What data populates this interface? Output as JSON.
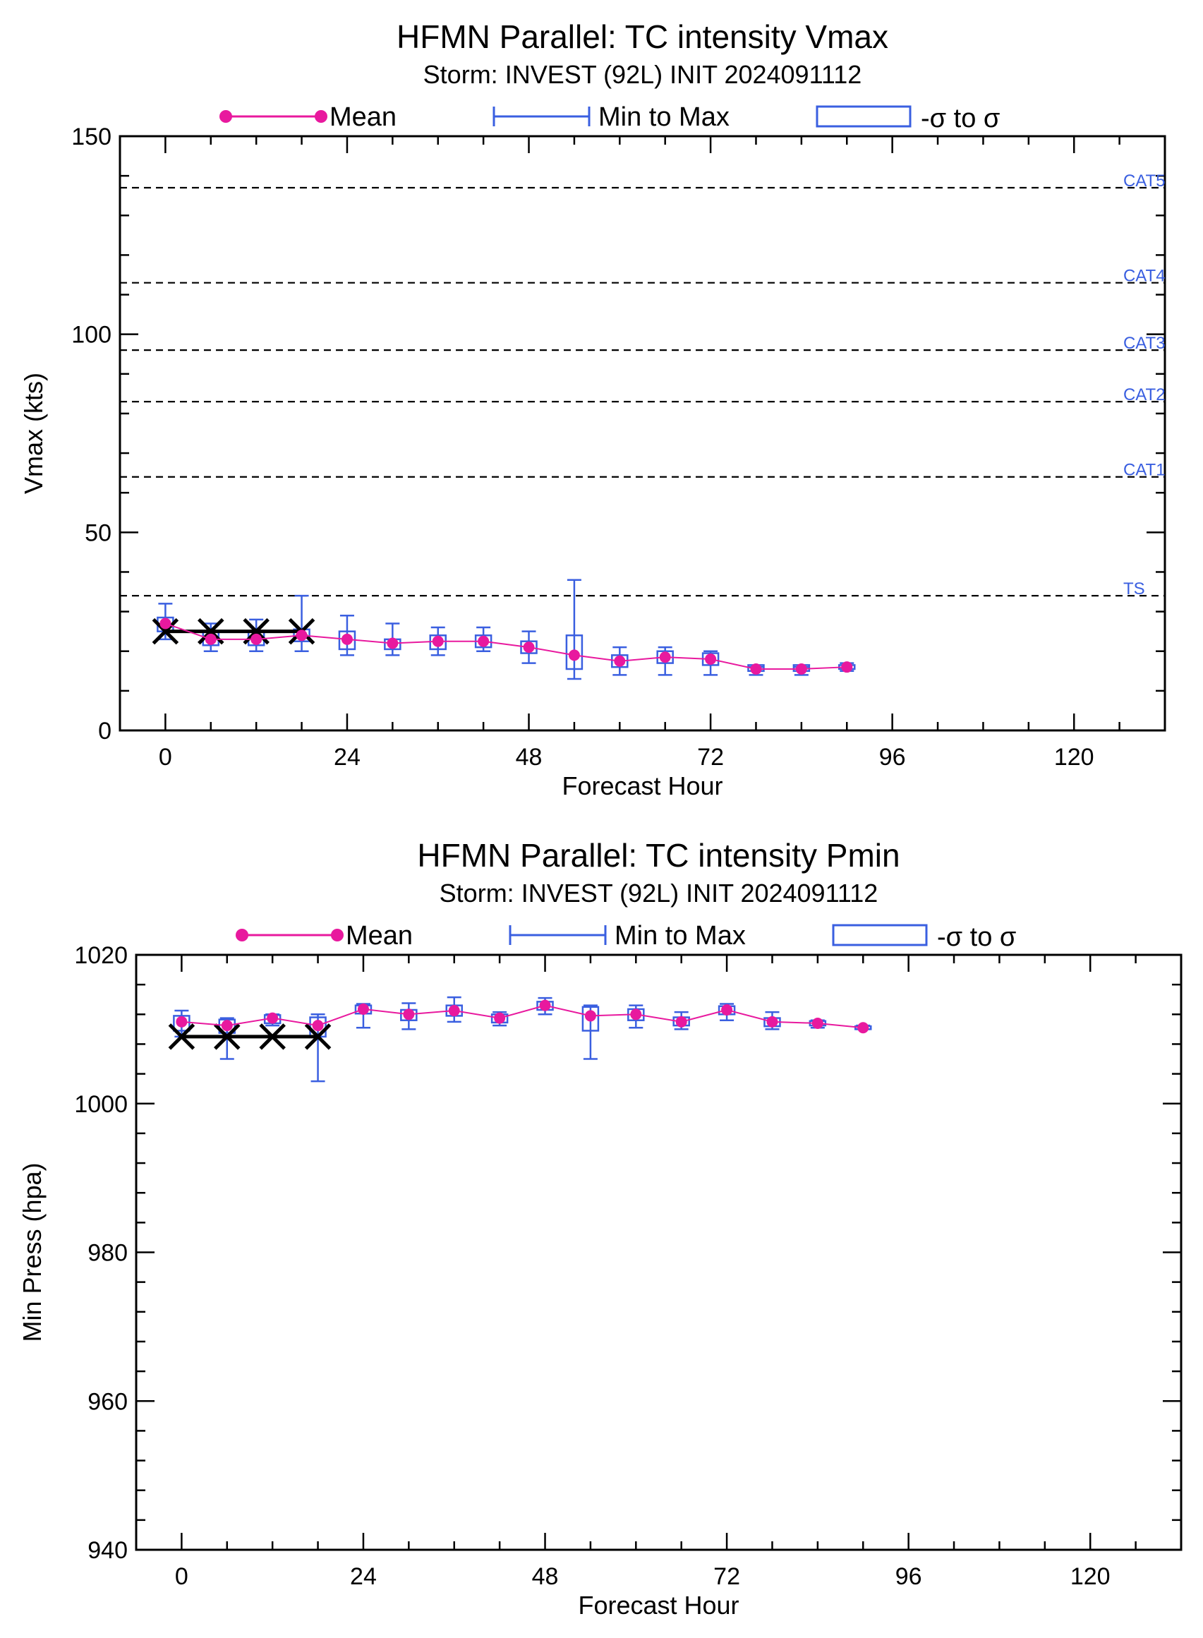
{
  "legend": {
    "mean": "Mean",
    "minmax": "Min to Max",
    "sigma": "-σ to σ"
  },
  "colors": {
    "mean": "#e8199e",
    "spread": "#3a5fe0",
    "obs": "#000000",
    "threshold": "#000000"
  },
  "chart_data": [
    {
      "type": "line",
      "title": "HFMN Parallel: TC intensity Vmax",
      "subtitle": "Storm: INVEST (92L) INIT 2024091112",
      "xlabel": "Forecast Hour",
      "ylabel": "Vmax (kts)",
      "xlim": [
        -6,
        132
      ],
      "ylim": [
        0,
        150
      ],
      "xticks": [
        0,
        24,
        48,
        72,
        96,
        120
      ],
      "yticks": [
        0,
        50,
        100,
        150
      ],
      "grid": false,
      "legend_position": "top",
      "thresholds": [
        {
          "label": "CAT5",
          "value": 137
        },
        {
          "label": "CAT4",
          "value": 113
        },
        {
          "label": "CAT3",
          "value": 96
        },
        {
          "label": "CAT2",
          "value": 83
        },
        {
          "label": "CAT1",
          "value": 64
        },
        {
          "label": "TS",
          "value": 34
        }
      ],
      "observed": {
        "x": [
          0,
          6,
          12,
          18
        ],
        "y": [
          25,
          25,
          25,
          25
        ]
      },
      "series": [
        {
          "name": "Mean",
          "x": [
            0,
            6,
            12,
            18,
            24,
            30,
            36,
            42,
            48,
            54,
            60,
            66,
            72,
            78,
            84,
            90
          ],
          "mean": [
            27,
            23,
            23,
            24,
            23,
            22,
            22.5,
            22.5,
            21,
            19,
            17.5,
            18.5,
            18,
            15.5,
            15.5,
            16
          ],
          "min": [
            23,
            20,
            20,
            20,
            19,
            19,
            19,
            20,
            17,
            13,
            14,
            14,
            14,
            14,
            14,
            15
          ],
          "max": [
            32,
            27,
            28,
            34,
            29,
            27,
            26,
            26,
            25,
            38,
            21,
            21,
            20,
            16,
            16,
            17
          ],
          "sigma_low": [
            25,
            21.5,
            21.5,
            22.5,
            20.5,
            20.5,
            20.5,
            21,
            19.5,
            15.5,
            16,
            17,
            16.5,
            15,
            15,
            15.5
          ],
          "sigma_high": [
            28.5,
            25,
            25,
            25.5,
            25,
            23,
            24,
            24,
            22.5,
            24,
            19,
            20,
            19.5,
            16.5,
            16.5,
            16.5
          ]
        }
      ]
    },
    {
      "type": "line",
      "title": "HFMN Parallel: TC intensity Pmin",
      "subtitle": "Storm: INVEST (92L) INIT 2024091112",
      "xlabel": "Forecast Hour",
      "ylabel": "Min Press (hpa)",
      "xlim": [
        -6,
        132
      ],
      "ylim": [
        940,
        1020
      ],
      "xticks": [
        0,
        24,
        48,
        72,
        96,
        120
      ],
      "yticks": [
        940,
        960,
        980,
        1000,
        1020
      ],
      "grid": false,
      "legend_position": "top",
      "observed": {
        "x": [
          0,
          6,
          12,
          18
        ],
        "y": [
          1009,
          1009,
          1009,
          1009
        ]
      },
      "series": [
        {
          "name": "Mean",
          "x": [
            0,
            6,
            12,
            18,
            24,
            30,
            36,
            42,
            48,
            54,
            60,
            66,
            72,
            78,
            84,
            90
          ],
          "mean": [
            1011,
            1010.5,
            1011.5,
            1010.5,
            1012.7,
            1012,
            1012.5,
            1011.5,
            1013.2,
            1011.8,
            1012,
            1011,
            1012.6,
            1011,
            1010.8,
            1010.2
          ],
          "min": [
            1009,
            1006,
            1010.5,
            1003,
            1010.2,
            1010,
            1011,
            1010.5,
            1012,
            1006,
            1010.2,
            1010,
            1011.2,
            1010,
            1010.2,
            1010
          ],
          "max": [
            1012.5,
            1011.5,
            1012,
            1012,
            1013.4,
            1013.5,
            1014.3,
            1012.3,
            1014.2,
            1013.2,
            1013.2,
            1012.3,
            1013.4,
            1012.3,
            1011.2,
            1010.5
          ],
          "sigma_low": [
            1009.8,
            1009.5,
            1010.8,
            1009,
            1012.1,
            1011.2,
            1011.8,
            1010.9,
            1012.6,
            1009.8,
            1011.2,
            1010.5,
            1012,
            1010.4,
            1010.5,
            1010
          ],
          "sigma_high": [
            1011.8,
            1011.3,
            1011.9,
            1011.6,
            1013.2,
            1012.6,
            1013.2,
            1012,
            1013.7,
            1013,
            1012.7,
            1011.6,
            1013.1,
            1011.5,
            1011.1,
            1010.4
          ]
        }
      ]
    }
  ]
}
